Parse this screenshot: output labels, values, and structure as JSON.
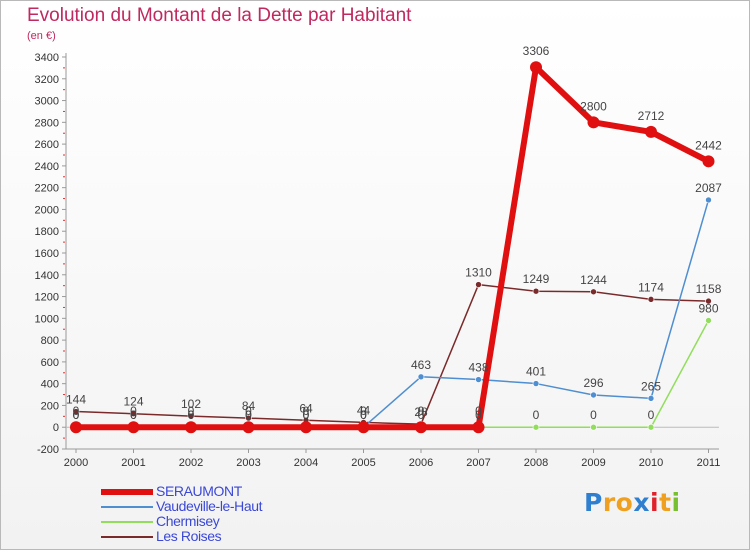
{
  "chart_data": {
    "type": "line",
    "title": "Evolution du Montant de la Dette par Habitant",
    "subtitle": "(en €)",
    "x": [
      "2000",
      "2001",
      "2002",
      "2003",
      "2004",
      "2005",
      "2006",
      "2007",
      "2008",
      "2009",
      "2010",
      "2011"
    ],
    "ylim": [
      -200,
      3400
    ],
    "yticks": [
      -200,
      0,
      200,
      400,
      600,
      800,
      1000,
      1200,
      1400,
      1600,
      1800,
      2000,
      2200,
      2400,
      2600,
      2800,
      3000,
      3200,
      3400
    ],
    "grid": false,
    "legend_position": "bottom-left",
    "series": [
      {
        "name": "SERAUMONT",
        "color": "#e01010",
        "values": [
          0,
          0,
          0,
          0,
          0,
          0,
          0,
          0,
          3306,
          2800,
          2712,
          2442
        ],
        "labels": [
          "0",
          "0",
          "0",
          "0",
          "0",
          "0",
          "0",
          "0",
          "3306",
          "2800",
          "2712",
          "2442"
        ]
      },
      {
        "name": "Vaudeville-le-Haut",
        "color": "#4f8ed0",
        "values": [
          0,
          0,
          0,
          0,
          0,
          0,
          463,
          438,
          401,
          296,
          265,
          2087
        ],
        "labels": [
          "0",
          "0",
          "0",
          "0",
          "0",
          "0",
          "463",
          "438",
          "401",
          "296",
          "265",
          "2087"
        ]
      },
      {
        "name": "Chermisey",
        "color": "#92de5c",
        "values": [
          0,
          0,
          0,
          0,
          0,
          0,
          0,
          0,
          0,
          0,
          0,
          980
        ],
        "labels": [
          "0",
          "0",
          "0",
          "0",
          "0",
          "0",
          "0",
          "0",
          "0",
          "0",
          "0",
          "980"
        ]
      },
      {
        "name": "Les Roises",
        "color": "#7a2a2a",
        "values": [
          144,
          124,
          102,
          84,
          64,
          44,
          28,
          1310,
          1249,
          1244,
          1174,
          1158
        ],
        "labels": [
          "144",
          "124",
          "102",
          "84",
          "64",
          "44",
          "28",
          "1310",
          "1249",
          "1244",
          "1174",
          "1158"
        ]
      }
    ]
  },
  "logo": {
    "letters": [
      "P",
      "r",
      "o",
      "x",
      "i",
      "t",
      "i"
    ],
    "colors": [
      "#2f7fd0",
      "#f0a020",
      "#f0a020",
      "#2f7fd0",
      "#e0202a",
      "#f0a020",
      "#78c030"
    ]
  }
}
